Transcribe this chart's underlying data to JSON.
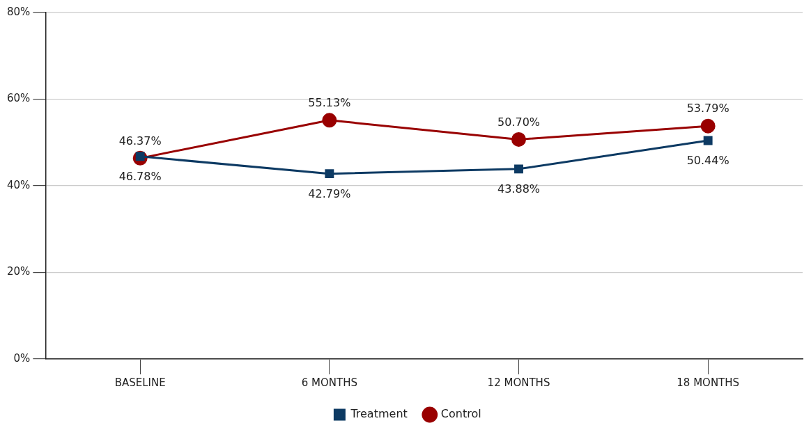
{
  "chart_data": {
    "type": "line",
    "categories": [
      "BASELINE",
      "6 MONTHS",
      "12 MONTHS",
      "18 MONTHS"
    ],
    "series": [
      {
        "name": "Treatment",
        "color": "#0d3a63",
        "marker": "square",
        "values": [
          46.78,
          42.79,
          43.88,
          50.44
        ],
        "value_labels": [
          "46.78%",
          "42.79%",
          "43.88%",
          "50.44%"
        ]
      },
      {
        "name": "Control",
        "color": "#990000",
        "marker": "circle",
        "values": [
          46.37,
          55.13,
          50.7,
          53.79
        ],
        "value_labels": [
          "46.37%",
          "55.13%",
          "50.70%",
          "53.79%"
        ]
      }
    ],
    "ylim": [
      0,
      80
    ],
    "yticks": [
      {
        "value": 0,
        "label": "0%"
      },
      {
        "value": 20,
        "label": "20%"
      },
      {
        "value": 40,
        "label": "40%"
      },
      {
        "value": 60,
        "label": "60%"
      },
      {
        "value": 80,
        "label": "80%"
      }
    ],
    "grid": "y",
    "legend": "bottom"
  }
}
